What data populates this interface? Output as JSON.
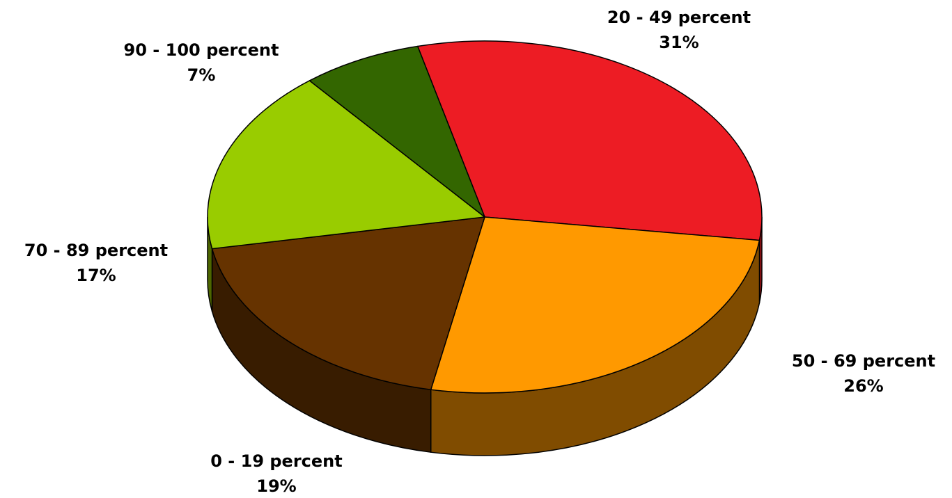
{
  "chart_data": {
    "type": "pie",
    "title": "",
    "three_d": true,
    "labels_position": "outside",
    "slices": [
      {
        "label": "20 - 49 percent",
        "value": 31,
        "value_label": "31%",
        "color": "#ed1c24",
        "side_color": "#9e1216"
      },
      {
        "label": "50 - 69 percent",
        "value": 26,
        "value_label": "26%",
        "color": "#ff9900",
        "side_color": "#804c00"
      },
      {
        "label": "0 - 19 percent",
        "value": 19,
        "value_label": "19%",
        "color": "#663300",
        "side_color": "#381c00"
      },
      {
        "label": "70 - 89 percent",
        "value": 17,
        "value_label": "17%",
        "color": "#99cc00",
        "side_color": "#4d6600"
      },
      {
        "label": "90 - 100 percent",
        "value": 7,
        "value_label": "7%",
        "color": "#336600",
        "side_color": "#1a3300"
      }
    ]
  }
}
